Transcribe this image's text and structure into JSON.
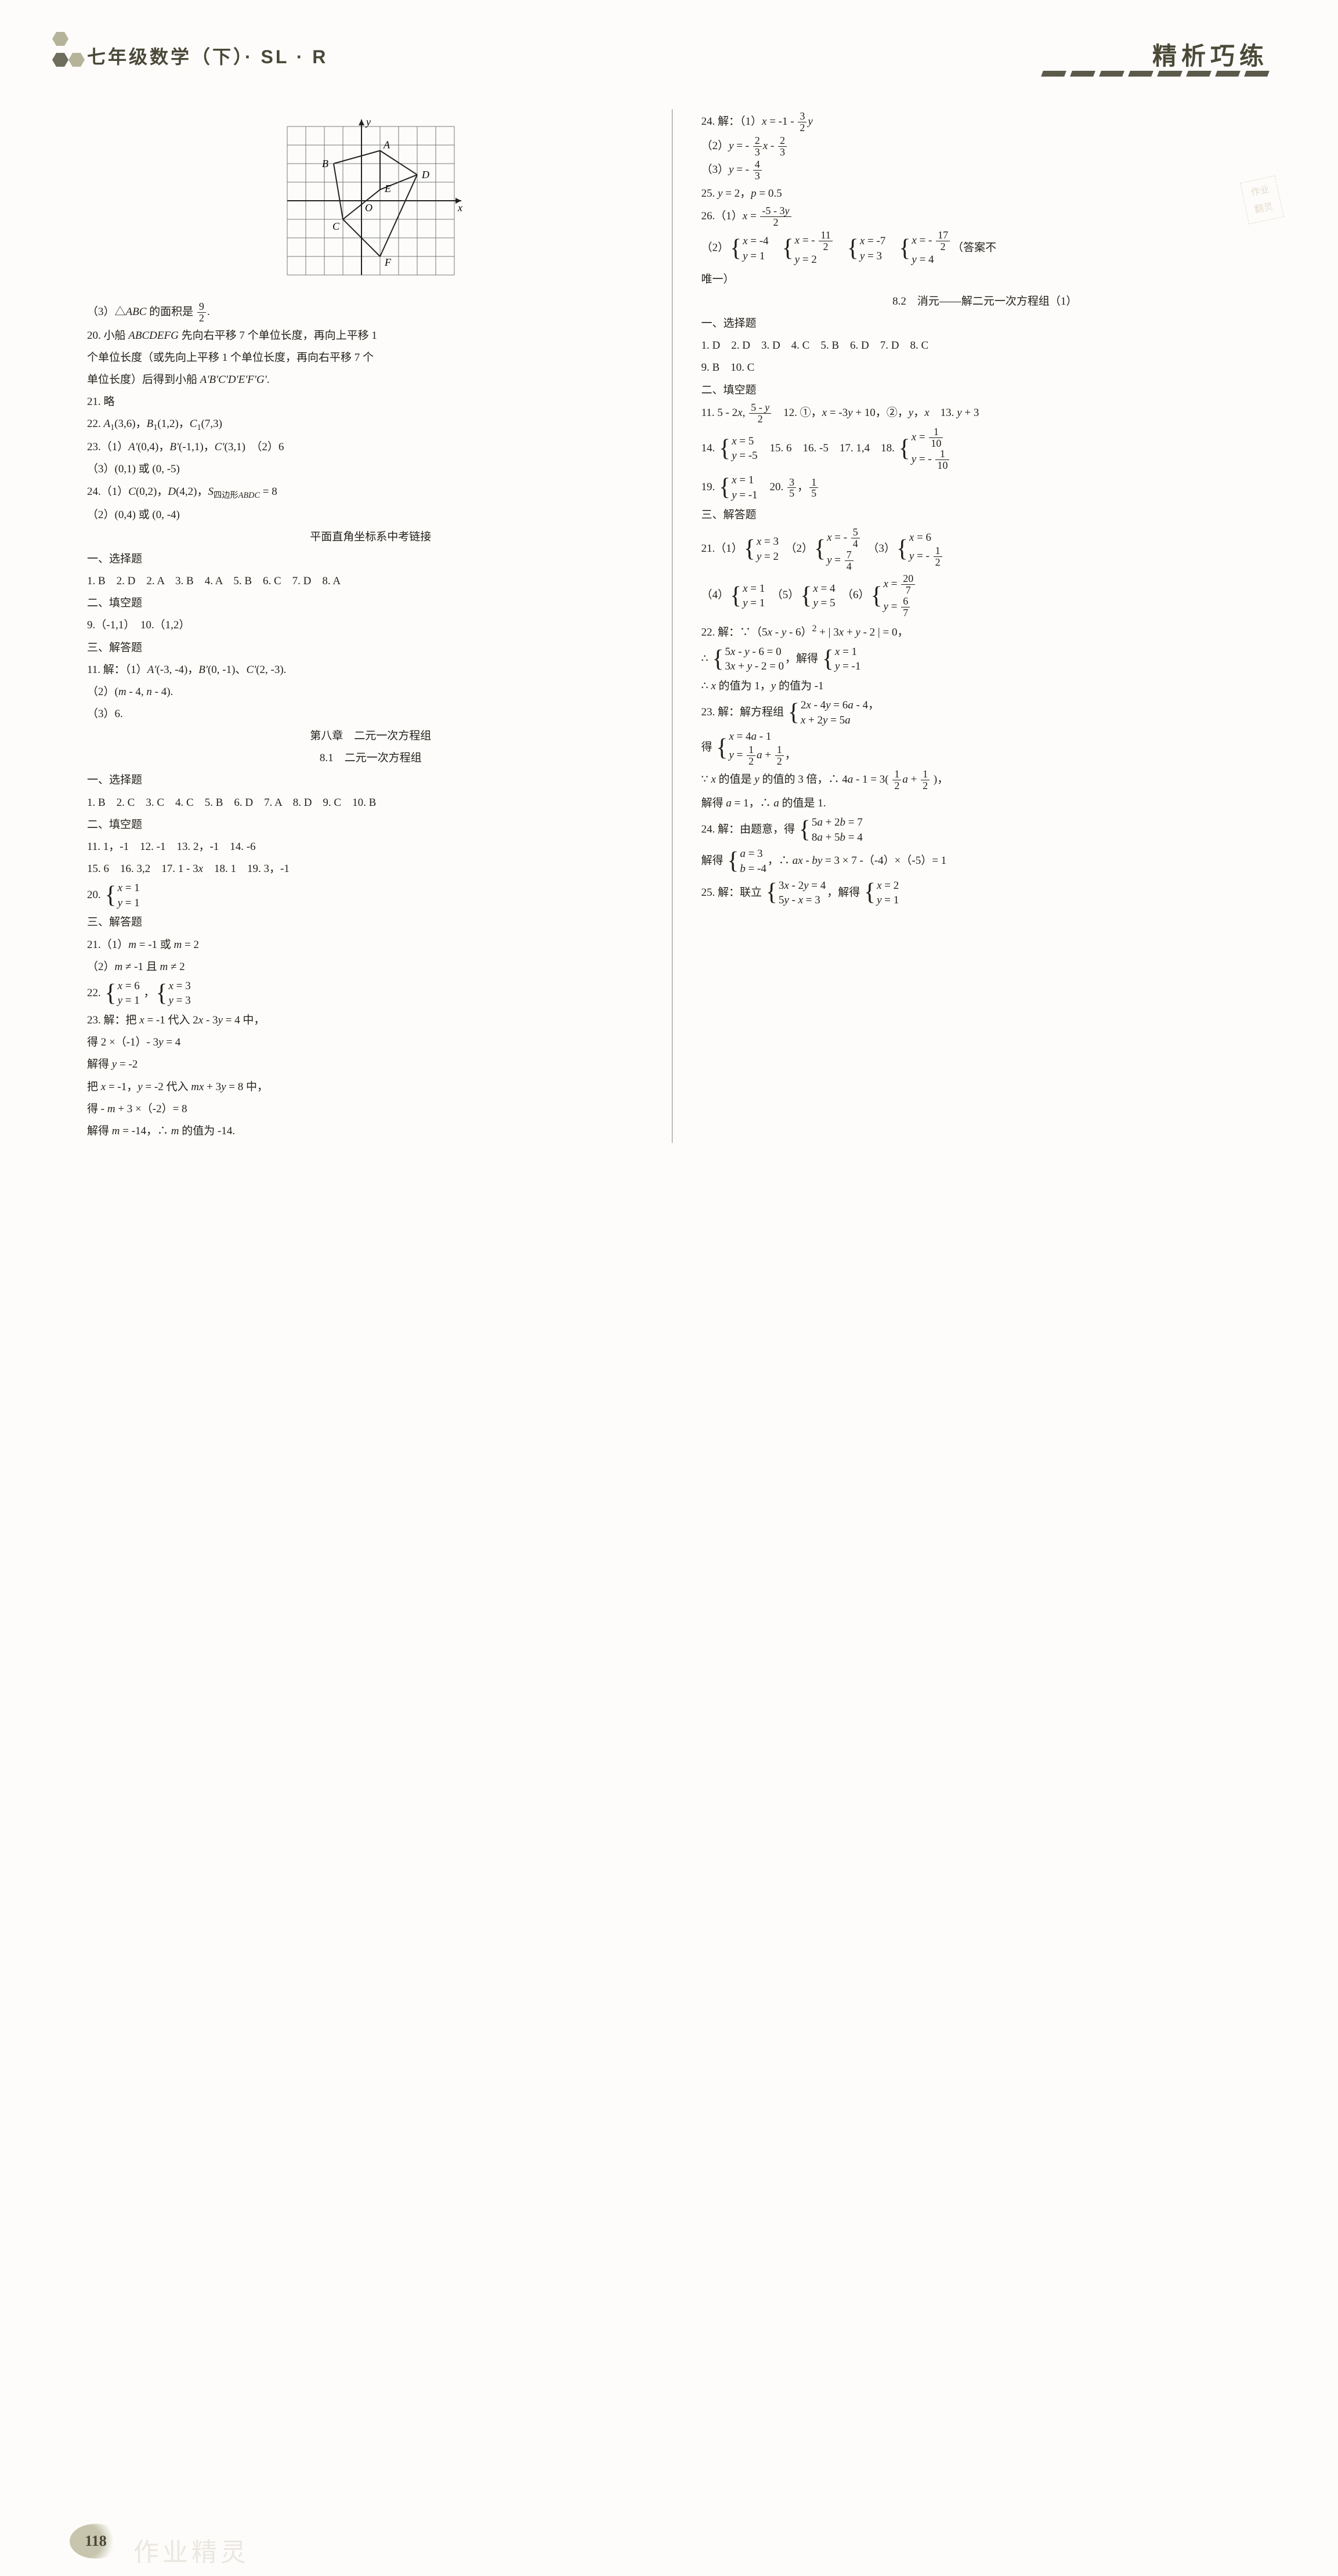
{
  "header": {
    "left_title": "七年级数学（下）· SL · R",
    "right_title": "精析巧练"
  },
  "graph": {
    "labels": [
      "y",
      "A",
      "B",
      "D",
      "E",
      "O",
      "x",
      "C",
      "F"
    ],
    "grid_color": "#777",
    "axis_color": "#222",
    "line_color": "#222",
    "rows": 8,
    "cols": 9,
    "cell": 32
  },
  "left_col": [
    {
      "t": "custom-graph"
    },
    {
      "t": "line",
      "html": "（3）△<i>ABC</i> 的面积是 <span class='frac'><span class='num'>9</span><span class='den'>2</span></span>."
    },
    {
      "t": "line",
      "html": "20. 小船 <i>ABCDEFG</i> 先向右平移 7 个单位长度，再向上平移 1"
    },
    {
      "t": "line",
      "html": "个单位长度（或先向上平移 1 个单位长度，再向右平移 7 个"
    },
    {
      "t": "line",
      "html": "单位长度）后得到小船 <i>A'B'C'D'E'F'G'</i>."
    },
    {
      "t": "line",
      "html": "21. 略"
    },
    {
      "t": "line",
      "html": "22. <i>A</i><sub>1</sub>(3,6)，<i>B</i><sub>1</sub>(1,2)，<i>C</i><sub>1</sub>(7,3)"
    },
    {
      "t": "line",
      "html": "23.（1）<i>A'</i>(0,4)，<i>B'</i>(-1,1)，<i>C'</i>(3,1)　（2）6"
    },
    {
      "t": "line",
      "html": "（3）(0,1) 或 (0, -5)"
    },
    {
      "t": "line",
      "html": "24.（1）<i>C</i>(0,2)，<i>D</i>(4,2)，<i>S</i><sub>四边形<i>ABDC</i></sub> = 8"
    },
    {
      "t": "line",
      "html": "（2）(0,4) 或 (0, -4)"
    },
    {
      "t": "center",
      "html": "平面直角坐标系中考链接"
    },
    {
      "t": "line",
      "html": "一、选择题"
    },
    {
      "t": "line",
      "html": "1. B　2. D　2. A　3. B　4. A　5. B　6. C　7. D　8. A"
    },
    {
      "t": "line",
      "html": "二、填空题"
    },
    {
      "t": "line",
      "html": "9.（-1,1）　10.（1,2）"
    },
    {
      "t": "line",
      "html": "三、解答题"
    },
    {
      "t": "line",
      "html": "11. 解：（1）<i>A'</i>(-3, -4)，<i>B'</i>(0, -1)、<i>C'</i>(2, -3)."
    },
    {
      "t": "line",
      "html": "（2）(<i>m</i> - 4, <i>n</i> - 4)."
    },
    {
      "t": "line",
      "html": "（3）6."
    },
    {
      "t": "center",
      "html": "第八章　二元一次方程组"
    },
    {
      "t": "center",
      "html": "8.1　二元一次方程组"
    },
    {
      "t": "line",
      "html": "一、选择题"
    },
    {
      "t": "line",
      "html": "1. B　2. C　3. C　4. C　5. B　6. D　7. A　8. D　9. C　10. B"
    },
    {
      "t": "line",
      "html": "二、填空题"
    },
    {
      "t": "line",
      "html": "11. 1，-1　12. -1　13. 2，-1　14. -6"
    },
    {
      "t": "line",
      "html": "15. 6　16. 3,2　17. 1 - 3<i>x</i>　18. 1　19. 3，-1"
    },
    {
      "t": "line",
      "html": "20. <span class='brace-sys'><span class='sys-body'><span><i>x</i> = 1</span><span><i>y</i> = 1</span></span></span>"
    },
    {
      "t": "line",
      "html": "三、解答题"
    },
    {
      "t": "line",
      "html": "21.（1）<i>m</i> = -1 或 <i>m</i> = 2"
    },
    {
      "t": "line",
      "html": "（2）<i>m</i> ≠ -1 且 <i>m</i> ≠ 2"
    },
    {
      "t": "line",
      "html": "22. <span class='brace-sys'><span class='sys-body'><span><i>x</i> = 6</span><span><i>y</i> = 1</span></span></span> ，<span class='brace-sys'><span class='sys-body'><span><i>x</i> = 3</span><span><i>y</i> = 3</span></span></span>"
    },
    {
      "t": "line",
      "html": "23. 解：把 <i>x</i> = -1 代入 2<i>x</i> - 3<i>y</i> = 4 中，"
    },
    {
      "t": "line",
      "html": "得 2 ×（-1）- 3<i>y</i> = 4"
    },
    {
      "t": "line",
      "html": "解得 <i>y</i> = -2"
    },
    {
      "t": "line",
      "html": "把 <i>x</i> = -1，<i>y</i> = -2 代入 <i>mx</i> + 3<i>y</i> = 8 中，"
    },
    {
      "t": "line",
      "html": "得 - <i>m</i> + 3 ×（-2）= 8"
    },
    {
      "t": "line",
      "html": "解得 <i>m</i> = -14，∴ <i>m</i> 的值为 -14."
    }
  ],
  "right_col": [
    {
      "t": "line",
      "html": "24. 解：（1）<i>x</i> = -1 - <span class='frac'><span class='num'>3</span><span class='den'>2</span></span><i>y</i>"
    },
    {
      "t": "line",
      "html": "（2）<i>y</i> = - <span class='frac'><span class='num'>2</span><span class='den'>3</span></span><i>x</i> - <span class='frac'><span class='num'>2</span><span class='den'>3</span></span>"
    },
    {
      "t": "line",
      "html": "（3）<i>y</i> = - <span class='frac'><span class='num'>4</span><span class='den'>3</span></span>"
    },
    {
      "t": "line",
      "html": "25. <i>y</i> = 2，<i>p</i> = 0.5"
    },
    {
      "t": "line",
      "html": "26.（1）<i>x</i> = <span class='frac'><span class='num'>-5 - 3<i>y</i></span><span class='den'>2</span></span>"
    },
    {
      "t": "line",
      "html": "（2）<span class='brace-sys'><span class='sys-body'><span><i>x</i> = -4</span><span><i>y</i> = 1</span></span></span>　<span class='brace-sys'><span class='sys-body'><span><i>x</i> = - <span class='frac'><span class='num'>11</span><span class='den'>2</span></span></span><span><i>y</i> = 2</span></span></span>　<span class='brace-sys'><span class='sys-body'><span><i>x</i> = -7</span><span><i>y</i> = 3</span></span></span>　<span class='brace-sys'><span class='sys-body'><span><i>x</i> = - <span class='frac'><span class='num'>17</span><span class='den'>2</span></span></span><span><i>y</i> = 4</span></span></span>（答案不"
    },
    {
      "t": "line",
      "html": "唯一）"
    },
    {
      "t": "center",
      "html": "8.2　消元——解二元一次方程组（1）"
    },
    {
      "t": "line",
      "html": "一、选择题"
    },
    {
      "t": "line",
      "html": "1. D　2. D　3. D　4. C　5. B　6. D　7. D　8. C"
    },
    {
      "t": "line",
      "html": "9. B　10. C"
    },
    {
      "t": "line",
      "html": "二、填空题"
    },
    {
      "t": "line",
      "html": "11. 5 - 2<i>x</i>, <span class='frac'><span class='num'>5 - <i>y</i></span><span class='den'>2</span></span>　12. ①，<i>x</i> = -3<i>y</i> + 10，②，<i>y</i>，<i>x</i>　13. <i>y</i> + 3"
    },
    {
      "t": "line",
      "html": "14. <span class='brace-sys'><span class='sys-body'><span><i>x</i> = 5</span><span><i>y</i> = -5</span></span></span>　15. 6　16. -5　17. 1,4　18. <span class='brace-sys'><span class='sys-body'><span><i>x</i> = <span class='frac'><span class='num'>1</span><span class='den'>10</span></span></span><span><i>y</i> = - <span class='frac'><span class='num'>1</span><span class='den'>10</span></span></span></span></span>"
    },
    {
      "t": "line",
      "html": "19. <span class='brace-sys'><span class='sys-body'><span><i>x</i> = 1</span><span><i>y</i> = -1</span></span></span>　20. <span class='frac'><span class='num'>3</span><span class='den'>5</span></span>，<span class='frac'><span class='num'>1</span><span class='den'>5</span></span>"
    },
    {
      "t": "line",
      "html": "三、解答题"
    },
    {
      "t": "line",
      "html": "21.（1）<span class='brace-sys'><span class='sys-body'><span><i>x</i> = 3</span><span><i>y</i> = 2</span></span></span>　（2）<span class='brace-sys'><span class='sys-body'><span><i>x</i> = - <span class='frac'><span class='num'>5</span><span class='den'>4</span></span></span><span><i>y</i> = <span class='frac'><span class='num'>7</span><span class='den'>4</span></span></span></span></span>　（3）<span class='brace-sys'><span class='sys-body'><span><i>x</i> = 6</span><span><i>y</i> = - <span class='frac'><span class='num'>1</span><span class='den'>2</span></span></span></span></span>"
    },
    {
      "t": "line",
      "html": "（4）<span class='brace-sys'><span class='sys-body'><span><i>x</i> = 1</span><span><i>y</i> = 1</span></span></span>　（5）<span class='brace-sys'><span class='sys-body'><span><i>x</i> = 4</span><span><i>y</i> = 5</span></span></span>　（6）<span class='brace-sys'><span class='sys-body'><span><i>x</i> = <span class='frac'><span class='num'>20</span><span class='den'>7</span></span></span><span><i>y</i> = <span class='frac'><span class='num'>6</span><span class='den'>7</span></span></span></span></span>"
    },
    {
      "t": "line",
      "html": "22. 解：∵（5<i>x</i> - <i>y</i> - 6）<sup>2</sup> + | 3<i>x</i> + <i>y</i> - 2 | = 0，"
    },
    {
      "t": "line",
      "html": "∴ <span class='brace-sys'><span class='sys-body'><span>5<i>x</i> - <i>y</i> - 6 = 0</span><span>3<i>x</i> + <i>y</i> - 2 = 0</span></span></span>，解得 <span class='brace-sys'><span class='sys-body'><span><i>x</i> = 1</span><span><i>y</i> = -1</span></span></span>"
    },
    {
      "t": "line",
      "html": "∴ <i>x</i> 的值为 1，<i>y</i> 的值为 -1"
    },
    {
      "t": "line",
      "html": "23. 解：解方程组 <span class='brace-sys'><span class='sys-body'><span>2<i>x</i> - 4<i>y</i> = 6<i>a</i> - 4，</span><span><i>x</i> + 2<i>y</i> = 5<i>a</i></span></span></span>"
    },
    {
      "t": "line",
      "html": "得 <span class='brace-sys'><span class='sys-body'><span><i>x</i> = 4<i>a</i> - 1</span><span><i>y</i> = <span class='frac'><span class='num'>1</span><span class='den'>2</span></span><i>a</i> + <span class='frac'><span class='num'>1</span><span class='den'>2</span></span>，</span></span></span>"
    },
    {
      "t": "line",
      "html": "∵ <i>x</i> 的值是 <i>y</i> 的值的 3 倍，∴ 4<i>a</i> - 1 = 3( <span class='frac'><span class='num'>1</span><span class='den'>2</span></span><i>a</i> + <span class='frac'><span class='num'>1</span><span class='den'>2</span></span> )，"
    },
    {
      "t": "line",
      "html": "解得 <i>a</i> = 1，∴ <i>a</i> 的值是 1."
    },
    {
      "t": "line",
      "html": "24. 解：由题意，得 <span class='brace-sys'><span class='sys-body'><span>5<i>a</i> + 2<i>b</i> = 7</span><span>8<i>a</i> + 5<i>b</i> = 4</span></span></span>"
    },
    {
      "t": "line",
      "html": "解得 <span class='brace-sys'><span class='sys-body'><span><i>a</i> = 3</span><span><i>b</i> = -4</span></span></span>，∴ <i>ax</i> - <i>by</i> = 3 × 7 -（-4）×（-5）= 1"
    },
    {
      "t": "line",
      "html": "25. 解：联立 <span class='brace-sys'><span class='sys-body'><span>3<i>x</i> - 2<i>y</i> = 4</span><span>5<i>y</i> - <i>x</i> = 3</span></span></span>，解得 <span class='brace-sys'><span class='sys-body'><span><i>x</i> = 2</span><span><i>y</i> = 1</span></span></span>"
    }
  ],
  "stamp": "作业\n翻灵",
  "page_number": "118",
  "watermark": "作业精灵"
}
